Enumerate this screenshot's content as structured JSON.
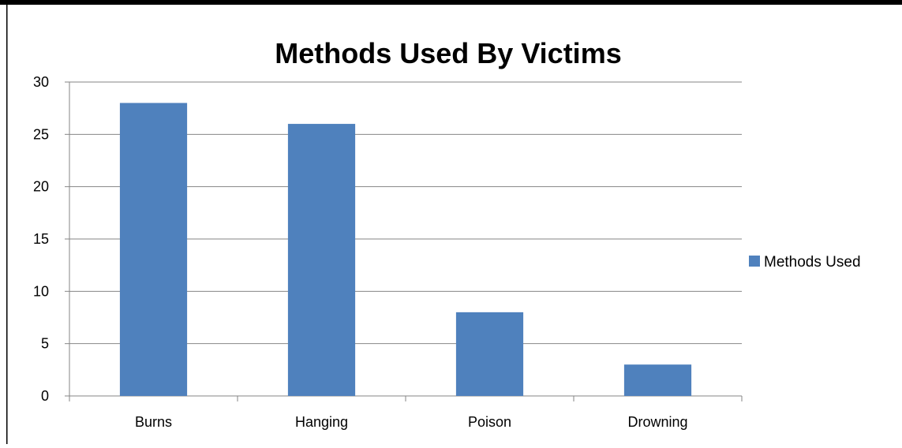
{
  "chart_data": {
    "type": "bar",
    "title": "Methods Used By Victims",
    "xlabel": "",
    "ylabel": "",
    "categories": [
      "Burns",
      "Hanging",
      "Poison",
      "Drowning"
    ],
    "series": [
      {
        "name": "Methods Used",
        "values": [
          28,
          26,
          8,
          3
        ],
        "color": "#4F81BD"
      }
    ],
    "ylim": [
      0,
      30
    ],
    "yticks": [
      0,
      5,
      10,
      15,
      20,
      25,
      30
    ],
    "grid": true,
    "legend_position": "right"
  },
  "colors": {
    "bar": "#4F81BD",
    "gridline": "#868686",
    "frame": "#000000"
  }
}
